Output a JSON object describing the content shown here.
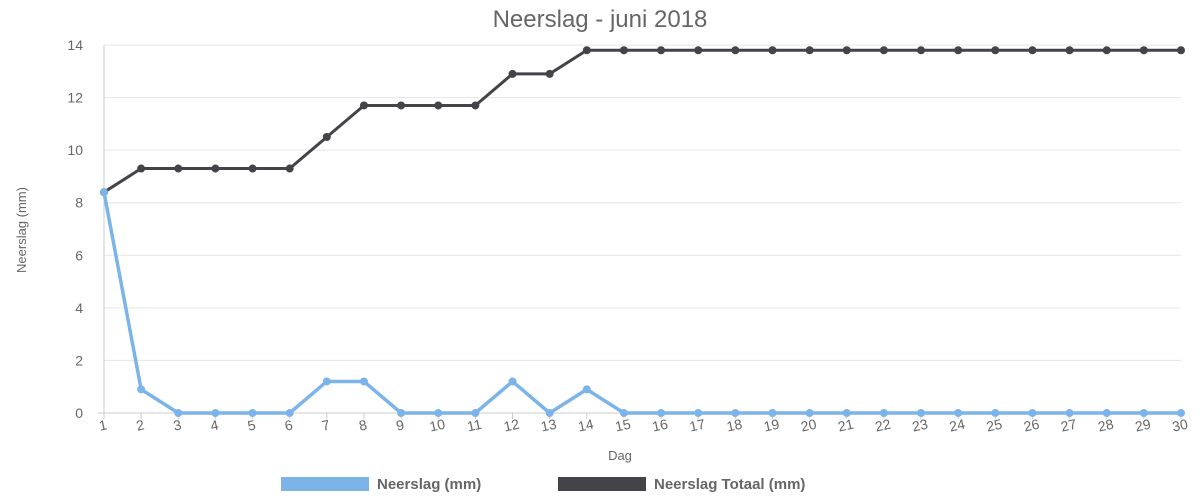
{
  "chart_data": {
    "type": "line",
    "title": "Neerslag - juni 2018",
    "xlabel": "Dag",
    "ylabel": "Neerslag (mm)",
    "ylim": [
      0,
      14
    ],
    "yticks": [
      "0",
      "2",
      "4",
      "6",
      "8",
      "10",
      "12",
      "14"
    ],
    "categories": [
      "1",
      "2",
      "3",
      "4",
      "5",
      "6",
      "7",
      "8",
      "9",
      "10",
      "11",
      "12",
      "13",
      "14",
      "15",
      "16",
      "17",
      "18",
      "19",
      "20",
      "21",
      "22",
      "23",
      "24",
      "25",
      "26",
      "27",
      "28",
      "29",
      "30"
    ],
    "grid": true,
    "legend_position": "bottom",
    "series": [
      {
        "name": "Neerslag (mm)",
        "color": "#7cb4ea",
        "values": [
          8.4,
          0.9,
          0,
          0,
          0,
          0,
          1.2,
          1.2,
          0,
          0,
          0,
          1.2,
          0,
          0.9,
          0,
          0,
          0,
          0,
          0,
          0,
          0,
          0,
          0,
          0,
          0,
          0,
          0,
          0,
          0,
          0
        ]
      },
      {
        "name": "Neerslag Totaal (mm)",
        "color": "#434348",
        "values": [
          8.4,
          9.3,
          9.3,
          9.3,
          9.3,
          9.3,
          10.5,
          11.7,
          11.7,
          11.7,
          11.7,
          12.9,
          12.9,
          13.8,
          13.8,
          13.8,
          13.8,
          13.8,
          13.8,
          13.8,
          13.8,
          13.8,
          13.8,
          13.8,
          13.8,
          13.8,
          13.8,
          13.8,
          13.8,
          13.8
        ]
      }
    ]
  }
}
